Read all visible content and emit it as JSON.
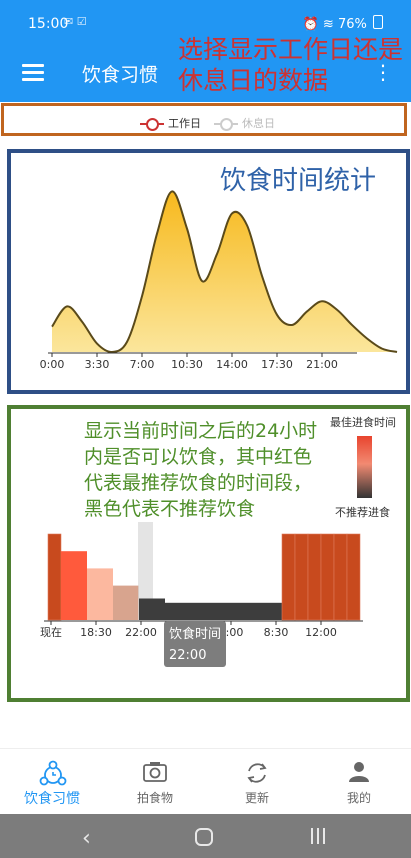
{
  "status_bar": {
    "time": "15:00",
    "battery": "76%"
  },
  "app_bar": {
    "title": "饮食习惯"
  },
  "annotations": {
    "top": "选择显示工作日还是休息日的数据",
    "panel1": "饮食时间统计",
    "panel2": "显示当前时间之后的24小时内是否可以饮食，其中红色代表最推荐饮食的时间段，黑色代表不推荐饮食"
  },
  "legend": {
    "workday": "工作日",
    "restday": "休息日"
  },
  "heatmap_legend": {
    "best": "最佳进食时间",
    "worst": "不推荐进食"
  },
  "tooltip": {
    "title": "饮食时间",
    "value": "22:00"
  },
  "colors": {
    "accent": "#2196f3",
    "curve_fill": "#f5c02a",
    "curve_line": "#5a4a1a",
    "recommended": "#c84a1e",
    "not_recommended": "#3a3a3a"
  },
  "chart_data": [
    {
      "type": "area",
      "title": "",
      "series": [
        {
          "name": "工作日"
        }
      ],
      "x_ticks": [
        "0:00",
        "3:30",
        "7:00",
        "10:30",
        "14:00",
        "17:30",
        "21:00"
      ],
      "x_hours": [
        0,
        1,
        2,
        3,
        4,
        5,
        6,
        7,
        8,
        9,
        10,
        11,
        12,
        13,
        14,
        15,
        16,
        17,
        18,
        19,
        20,
        21,
        22,
        23
      ],
      "values": [
        0.15,
        0.27,
        0.18,
        0.05,
        0.0,
        0.06,
        0.33,
        0.7,
        0.95,
        0.73,
        0.42,
        0.58,
        0.82,
        0.75,
        0.45,
        0.22,
        0.16,
        0.24,
        0.3,
        0.25,
        0.16,
        0.08,
        0.02,
        0.0
      ],
      "grid": false,
      "legend": "top"
    },
    {
      "type": "bar",
      "title": "",
      "x_ticks": [
        "现在",
        "18:30",
        "22:00",
        "1:30",
        "5:00",
        "8:30",
        "12:00"
      ],
      "categories": [
        "15:00",
        "16:00",
        "17:00",
        "18:00",
        "19:00",
        "20:00",
        "21:00",
        "22:00",
        "23:00",
        "0:00",
        "1:00",
        "2:00",
        "3:00",
        "4:00",
        "5:00",
        "6:00",
        "7:00",
        "8:00",
        "9:00",
        "10:00",
        "11:00",
        "12:00",
        "13:00",
        "14:00"
      ],
      "values": [
        1.0,
        0.8,
        0.8,
        0.6,
        0.6,
        0.4,
        0.4,
        0.25,
        0.25,
        0.2,
        0.2,
        0.2,
        0.2,
        0.2,
        0.2,
        0.2,
        0.2,
        0.2,
        1.0,
        1.0,
        1.0,
        1.0,
        1.0,
        1.0
      ],
      "colors": [
        "#c84a1e",
        "#ff5a3c",
        "#ff5a3c",
        "#fcb89f",
        "#fcb89f",
        "#d8a48e",
        "#d8a48e",
        "#3d3d3d",
        "#3d3d3d",
        "#3d3d3d",
        "#3d3d3d",
        "#3d3d3d",
        "#3d3d3d",
        "#3d3d3d",
        "#3d3d3d",
        "#3d3d3d",
        "#3d3d3d",
        "#3d3d3d",
        "#c84a1e",
        "#c84a1e",
        "#c84a1e",
        "#c84a1e",
        "#c84a1e",
        "#c84a1e"
      ],
      "highlight_index": 7
    }
  ],
  "bottom_nav": [
    {
      "label": "饮食习惯",
      "icon": "meal-habit-icon"
    },
    {
      "label": "拍食物",
      "icon": "camera-icon"
    },
    {
      "label": "更新",
      "icon": "refresh-icon"
    },
    {
      "label": "我的",
      "icon": "person-icon"
    }
  ]
}
